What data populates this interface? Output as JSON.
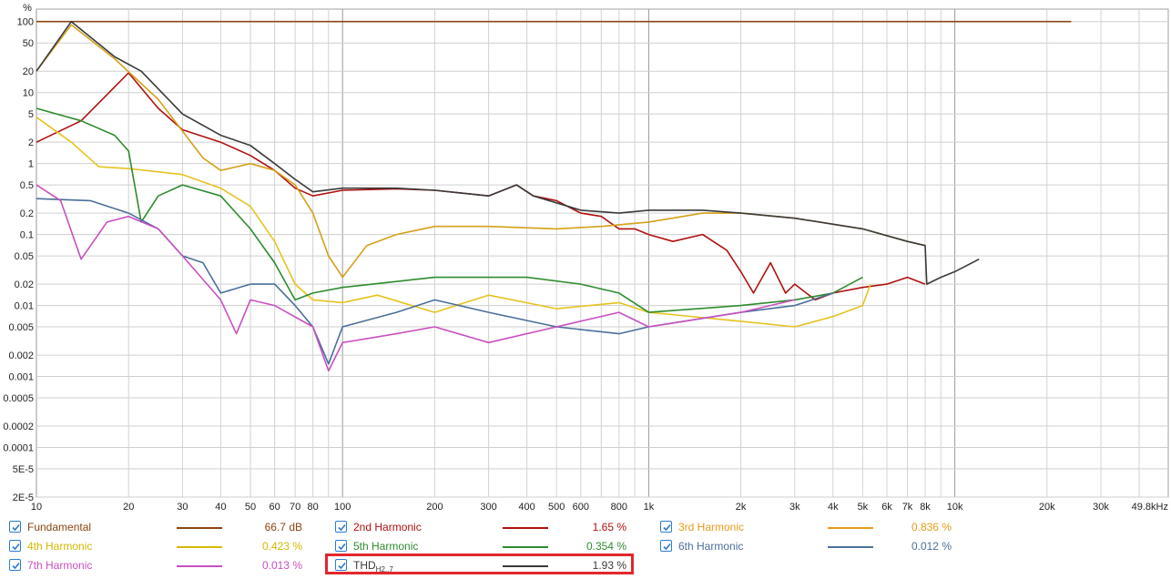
{
  "chart_data": {
    "type": "line",
    "xscale": "log",
    "yscale": "log",
    "xlim": [
      10,
      49800
    ],
    "ylim": [
      2e-05,
      150
    ],
    "y_unit_label": "%",
    "grid": true,
    "x_tick_labels": [
      {
        "v": 10,
        "t": "10"
      },
      {
        "v": 20,
        "t": "20"
      },
      {
        "v": 30,
        "t": "30"
      },
      {
        "v": 40,
        "t": "40"
      },
      {
        "v": 50,
        "t": "50"
      },
      {
        "v": 60,
        "t": "60"
      },
      {
        "v": 70,
        "t": "70"
      },
      {
        "v": 80,
        "t": "80"
      },
      {
        "v": 100,
        "t": "100"
      },
      {
        "v": 200,
        "t": "200"
      },
      {
        "v": 300,
        "t": "300"
      },
      {
        "v": 400,
        "t": "400"
      },
      {
        "v": 500,
        "t": "500"
      },
      {
        "v": 600,
        "t": "600"
      },
      {
        "v": 800,
        "t": "800"
      },
      {
        "v": 1000,
        "t": "1k"
      },
      {
        "v": 2000,
        "t": "2k"
      },
      {
        "v": 3000,
        "t": "3k"
      },
      {
        "v": 4000,
        "t": "4k"
      },
      {
        "v": 5000,
        "t": "5k"
      },
      {
        "v": 6000,
        "t": "6k"
      },
      {
        "v": 7000,
        "t": "7k"
      },
      {
        "v": 8000,
        "t": "8k"
      },
      {
        "v": 10000,
        "t": "10k"
      },
      {
        "v": 20000,
        "t": "20k"
      },
      {
        "v": 30000,
        "t": "30k"
      },
      {
        "v": 49800,
        "t": "49.8kHz"
      }
    ],
    "y_tick_labels": [
      {
        "v": 100,
        "t": "100"
      },
      {
        "v": 50,
        "t": "50"
      },
      {
        "v": 20,
        "t": "20"
      },
      {
        "v": 10,
        "t": "10"
      },
      {
        "v": 5,
        "t": "5"
      },
      {
        "v": 2,
        "t": "2"
      },
      {
        "v": 1,
        "t": "1"
      },
      {
        "v": 0.5,
        "t": "0.5"
      },
      {
        "v": 0.2,
        "t": "0.2"
      },
      {
        "v": 0.1,
        "t": "0.1"
      },
      {
        "v": 0.05,
        "t": "0.05"
      },
      {
        "v": 0.02,
        "t": "0.02"
      },
      {
        "v": 0.01,
        "t": "0.01"
      },
      {
        "v": 0.005,
        "t": "0.005"
      },
      {
        "v": 0.002,
        "t": "0.002"
      },
      {
        "v": 0.001,
        "t": "0.001"
      },
      {
        "v": 0.0005,
        "t": "0.0005"
      },
      {
        "v": 0.0002,
        "t": "0.0002"
      },
      {
        "v": 0.0001,
        "t": "0.0001"
      },
      {
        "v": 5e-05,
        "t": "5E-5"
      },
      {
        "v": 2e-05,
        "t": "2E-5"
      }
    ],
    "series": [
      {
        "name": "Fundamental",
        "color": "#8b4513",
        "points": [
          [
            10,
            100
          ],
          [
            24000,
            100
          ]
        ]
      },
      {
        "name": "2nd Harmonic",
        "color": "#b01010",
        "points": [
          [
            10,
            2
          ],
          [
            14,
            4
          ],
          [
            20,
            19
          ],
          [
            25,
            6
          ],
          [
            30,
            3
          ],
          [
            40,
            2
          ],
          [
            50,
            1.3
          ],
          [
            60,
            0.8
          ],
          [
            70,
            0.45
          ],
          [
            80,
            0.35
          ],
          [
            100,
            0.42
          ],
          [
            150,
            0.44
          ],
          [
            200,
            0.42
          ],
          [
            300,
            0.35
          ],
          [
            370,
            0.5
          ],
          [
            420,
            0.35
          ],
          [
            500,
            0.3
          ],
          [
            600,
            0.2
          ],
          [
            700,
            0.18
          ],
          [
            800,
            0.12
          ],
          [
            900,
            0.12
          ],
          [
            1000,
            0.1
          ],
          [
            1200,
            0.08
          ],
          [
            1500,
            0.1
          ],
          [
            1800,
            0.06
          ],
          [
            2000,
            0.03
          ],
          [
            2200,
            0.015
          ],
          [
            2500,
            0.04
          ],
          [
            2800,
            0.015
          ],
          [
            3000,
            0.02
          ],
          [
            3500,
            0.012
          ],
          [
            4000,
            0.015
          ],
          [
            5000,
            0.018
          ],
          [
            6000,
            0.02
          ],
          [
            7000,
            0.025
          ],
          [
            8000,
            0.02
          ]
        ]
      },
      {
        "name": "3rd Harmonic",
        "color": "#d4a017",
        "points": [
          [
            10,
            20
          ],
          [
            13,
            90
          ],
          [
            18,
            30
          ],
          [
            25,
            8
          ],
          [
            35,
            1.2
          ],
          [
            40,
            0.8
          ],
          [
            50,
            1.0
          ],
          [
            60,
            0.8
          ],
          [
            70,
            0.5
          ],
          [
            80,
            0.2
          ],
          [
            90,
            0.05
          ],
          [
            100,
            0.025
          ],
          [
            120,
            0.07
          ],
          [
            150,
            0.1
          ],
          [
            200,
            0.13
          ],
          [
            300,
            0.13
          ],
          [
            500,
            0.12
          ],
          [
            700,
            0.13
          ],
          [
            1000,
            0.15
          ],
          [
            1500,
            0.2
          ],
          [
            2000,
            0.2
          ],
          [
            3000,
            0.17
          ],
          [
            5000,
            0.12
          ],
          [
            7000,
            0.08
          ],
          [
            8000,
            0.07
          ]
        ]
      },
      {
        "name": "4th Harmonic",
        "color": "#e6c31f",
        "points": [
          [
            10,
            4.5
          ],
          [
            13,
            2
          ],
          [
            16,
            0.9
          ],
          [
            20,
            0.85
          ],
          [
            30,
            0.7
          ],
          [
            40,
            0.45
          ],
          [
            50,
            0.25
          ],
          [
            60,
            0.08
          ],
          [
            70,
            0.02
          ],
          [
            80,
            0.012
          ],
          [
            100,
            0.011
          ],
          [
            130,
            0.014
          ],
          [
            200,
            0.008
          ],
          [
            300,
            0.014
          ],
          [
            500,
            0.009
          ],
          [
            800,
            0.011
          ],
          [
            1000,
            0.008
          ],
          [
            2000,
            0.006
          ],
          [
            3000,
            0.005
          ],
          [
            4000,
            0.007
          ],
          [
            5000,
            0.01
          ],
          [
            5300,
            0.02
          ]
        ]
      },
      {
        "name": "5th Harmonic",
        "color": "#2e8b2e",
        "points": [
          [
            10,
            6
          ],
          [
            14,
            4
          ],
          [
            18,
            2.5
          ],
          [
            20,
            1.5
          ],
          [
            22,
            0.15
          ],
          [
            25,
            0.35
          ],
          [
            30,
            0.5
          ],
          [
            40,
            0.35
          ],
          [
            50,
            0.12
          ],
          [
            60,
            0.04
          ],
          [
            70,
            0.012
          ],
          [
            80,
            0.015
          ],
          [
            100,
            0.018
          ],
          [
            200,
            0.025
          ],
          [
            300,
            0.025
          ],
          [
            400,
            0.025
          ],
          [
            600,
            0.02
          ],
          [
            800,
            0.015
          ],
          [
            1000,
            0.008
          ],
          [
            2000,
            0.01
          ],
          [
            3000,
            0.012
          ],
          [
            4000,
            0.015
          ],
          [
            5000,
            0.025
          ]
        ]
      },
      {
        "name": "6th Harmonic",
        "color": "#4a6f9a",
        "points": [
          [
            10,
            0.32
          ],
          [
            15,
            0.3
          ],
          [
            20,
            0.2
          ],
          [
            25,
            0.12
          ],
          [
            30,
            0.05
          ],
          [
            35,
            0.04
          ],
          [
            40,
            0.015
          ],
          [
            50,
            0.02
          ],
          [
            60,
            0.02
          ],
          [
            70,
            0.01
          ],
          [
            80,
            0.005
          ],
          [
            90,
            0.0015
          ],
          [
            100,
            0.005
          ],
          [
            150,
            0.008
          ],
          [
            200,
            0.012
          ],
          [
            300,
            0.008
          ],
          [
            500,
            0.005
          ],
          [
            800,
            0.004
          ],
          [
            1000,
            0.005
          ],
          [
            2000,
            0.008
          ],
          [
            3000,
            0.01
          ],
          [
            4000,
            0.015
          ]
        ]
      },
      {
        "name": "7th Harmonic",
        "color": "#c850c0",
        "points": [
          [
            10,
            0.5
          ],
          [
            12,
            0.3
          ],
          [
            14,
            0.045
          ],
          [
            17,
            0.15
          ],
          [
            20,
            0.18
          ],
          [
            25,
            0.12
          ],
          [
            30,
            0.05
          ],
          [
            40,
            0.012
          ],
          [
            45,
            0.004
          ],
          [
            50,
            0.012
          ],
          [
            60,
            0.01
          ],
          [
            80,
            0.005
          ],
          [
            90,
            0.0012
          ],
          [
            100,
            0.003
          ],
          [
            150,
            0.004
          ],
          [
            200,
            0.005
          ],
          [
            300,
            0.003
          ],
          [
            500,
            0.005
          ],
          [
            800,
            0.008
          ],
          [
            1000,
            0.005
          ],
          [
            2000,
            0.008
          ],
          [
            3000,
            0.012
          ]
        ]
      },
      {
        "name": "THD",
        "color": "#3a3a3a",
        "points": [
          [
            10,
            20
          ],
          [
            13,
            100
          ],
          [
            18,
            32
          ],
          [
            22,
            20
          ],
          [
            30,
            5
          ],
          [
            40,
            2.5
          ],
          [
            50,
            1.8
          ],
          [
            60,
            1.0
          ],
          [
            70,
            0.6
          ],
          [
            80,
            0.4
          ],
          [
            100,
            0.45
          ],
          [
            150,
            0.45
          ],
          [
            200,
            0.42
          ],
          [
            300,
            0.35
          ],
          [
            370,
            0.5
          ],
          [
            420,
            0.35
          ],
          [
            500,
            0.28
          ],
          [
            600,
            0.22
          ],
          [
            800,
            0.2
          ],
          [
            1000,
            0.22
          ],
          [
            1500,
            0.22
          ],
          [
            2000,
            0.2
          ],
          [
            3000,
            0.17
          ],
          [
            5000,
            0.12
          ],
          [
            7000,
            0.08
          ],
          [
            8000,
            0.07
          ],
          [
            8100,
            0.02
          ],
          [
            9000,
            0.025
          ],
          [
            10000,
            0.03
          ],
          [
            12000,
            0.045
          ]
        ]
      }
    ]
  },
  "legend": [
    {
      "name": "Fundamental",
      "value": "66.7 dB",
      "color": "#8b4513",
      "text_color": "#8b4513"
    },
    {
      "name": "2nd Harmonic",
      "value": "1.65 %",
      "color": "#b01010",
      "text_color": "#b01010"
    },
    {
      "name": "3rd Harmonic",
      "value": "0.836 %",
      "color": "#e89b1a",
      "text_color": "#e89b1a"
    },
    {
      "name": "4th Harmonic",
      "value": "0.423 %",
      "color": "#d4b800",
      "text_color": "#d4b800"
    },
    {
      "name": "5th Harmonic",
      "value": "0.354 %",
      "color": "#2e8b2e",
      "text_color": "#2e8b2e"
    },
    {
      "name": "6th Harmonic",
      "value": "0.012 %",
      "color": "#4a6f9a",
      "text_color": "#4a6f9a"
    },
    {
      "name": "7th Harmonic",
      "value": "0.013 %",
      "color": "#c850c0",
      "text_color": "#c850c0"
    },
    {
      "name": "THD",
      "sub": "H2..7",
      "value": "1.93 %",
      "color": "#3a3a3a",
      "text_color": "#3a3a3a"
    }
  ]
}
